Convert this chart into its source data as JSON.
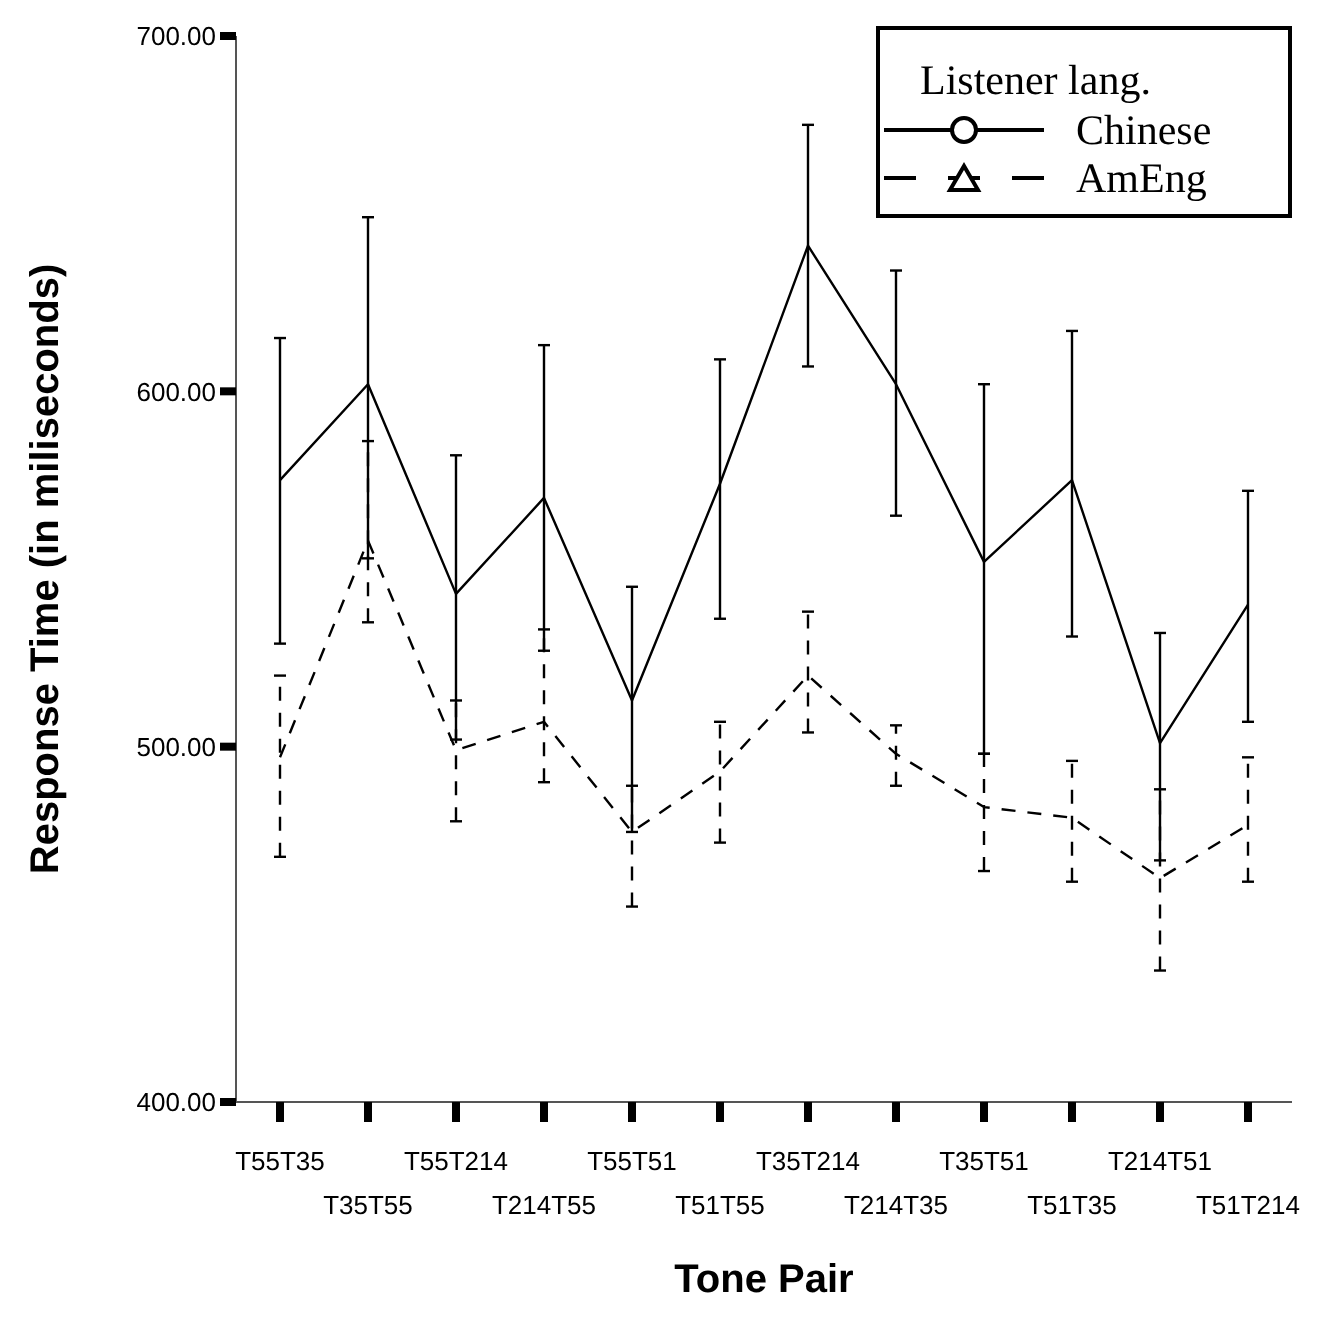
{
  "chart_data": {
    "type": "line",
    "xlabel": "Tone Pair",
    "ylabel": "Response Time (in miliseconds)",
    "legend_title": "Listener lang.",
    "legend": "top right",
    "categories": [
      "T55T35",
      "T35T55",
      "T55T214",
      "T214T55",
      "T55T51",
      "T51T55",
      "T35T214",
      "T214T35",
      "T35T51",
      "T51T35",
      "T214T51",
      "T51T214"
    ],
    "ylim": [
      400,
      700
    ],
    "yticks": [
      {
        "value": 400,
        "label": "400.00"
      },
      {
        "value": 500,
        "label": "500.00"
      },
      {
        "value": 600,
        "label": "600.00"
      },
      {
        "value": 700,
        "label": "700.00"
      }
    ],
    "series": [
      {
        "name": "Chinese",
        "color": "#000000",
        "line_style": "solid",
        "values": [
          575,
          602,
          543,
          570,
          513,
          574,
          641,
          602,
          552,
          575,
          501,
          540
        ],
        "errors": [
          [
            529,
            615
          ],
          [
            553,
            649
          ],
          [
            502,
            582
          ],
          [
            527,
            613
          ],
          [
            476,
            545
          ],
          [
            536,
            609
          ],
          [
            607,
            675
          ],
          [
            565,
            634
          ],
          [
            498,
            602
          ],
          [
            531,
            617
          ],
          [
            468,
            532
          ],
          [
            507,
            572
          ]
        ]
      },
      {
        "name": "AmEng",
        "color": "#000000",
        "line_style": "dashed",
        "values": [
          497,
          558,
          499,
          507,
          476,
          493,
          520,
          498,
          483,
          480,
          463,
          478
        ],
        "errors": [
          [
            469,
            520
          ],
          [
            535,
            586
          ],
          [
            479,
            513
          ],
          [
            490,
            533
          ],
          [
            455,
            489
          ],
          [
            473,
            507
          ],
          [
            504,
            538
          ],
          [
            489,
            506
          ],
          [
            465,
            498
          ],
          [
            462,
            496
          ],
          [
            437,
            488
          ],
          [
            462,
            497
          ]
        ]
      }
    ]
  }
}
